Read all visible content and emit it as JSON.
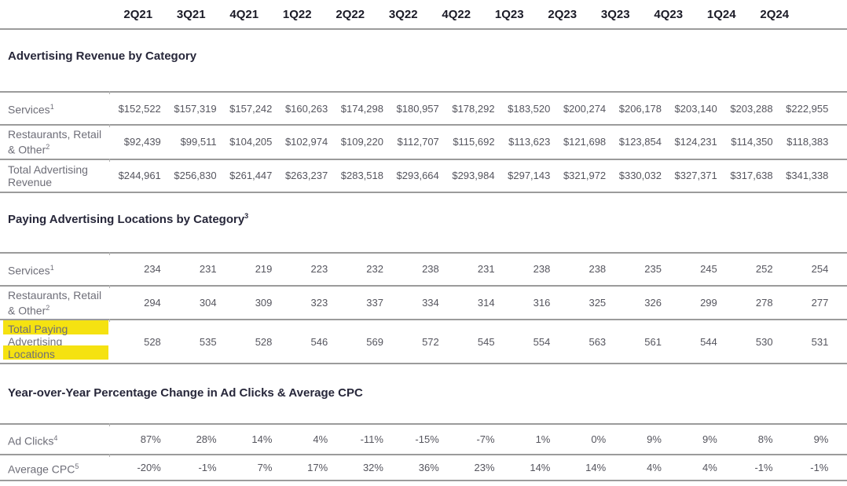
{
  "header": {
    "quarters": [
      "2Q21",
      "3Q21",
      "4Q21",
      "1Q22",
      "2Q22",
      "3Q22",
      "4Q22",
      "1Q23",
      "2Q23",
      "3Q23",
      "4Q23",
      "1Q24",
      "2Q24"
    ]
  },
  "sections": [
    {
      "title": "Advertising Revenue by Category",
      "title_sup": "",
      "rows": [
        {
          "label": "Services",
          "label_sup": "1",
          "values": [
            "$152,522",
            "$157,319",
            "$157,242",
            "$160,263",
            "$174,298",
            "$180,957",
            "$178,292",
            "$183,520",
            "$200,274",
            "$206,178",
            "$203,140",
            "$203,288",
            "$222,955"
          ]
        },
        {
          "label": "Restaurants, Retail & Other",
          "label_sup": "2",
          "values": [
            "$92,439",
            "$99,511",
            "$104,205",
            "$102,974",
            "$109,220",
            "$112,707",
            "$115,692",
            "$113,623",
            "$121,698",
            "$123,854",
            "$124,231",
            "$114,350",
            "$118,383"
          ]
        },
        {
          "label": "Total Advertising Revenue",
          "label_sup": "",
          "values": [
            "$244,961",
            "$256,830",
            "$261,447",
            "$263,237",
            "$283,518",
            "$293,664",
            "$293,984",
            "$297,143",
            "$321,972",
            "$330,032",
            "$327,371",
            "$317,638",
            "$341,338"
          ]
        }
      ]
    },
    {
      "title": "Paying Advertising Locations by Category",
      "title_sup": "3",
      "rows": [
        {
          "label": "Services",
          "label_sup": "1",
          "values": [
            "234",
            "231",
            "219",
            "223",
            "232",
            "238",
            "231",
            "238",
            "238",
            "235",
            "245",
            "252",
            "254"
          ]
        },
        {
          "label": "Restaurants, Retail & Other",
          "label_sup": "2",
          "values": [
            "294",
            "304",
            "309",
            "323",
            "337",
            "334",
            "314",
            "316",
            "325",
            "326",
            "299",
            "278",
            "277"
          ]
        },
        {
          "label_lines": [
            {
              "text": "Total Paying",
              "highlight": true
            },
            {
              "text": "Advertising",
              "highlight": false
            },
            {
              "text": "Locations",
              "highlight": true
            }
          ],
          "values": [
            "528",
            "535",
            "528",
            "546",
            "569",
            "572",
            "545",
            "554",
            "563",
            "561",
            "544",
            "530",
            "531"
          ]
        }
      ]
    },
    {
      "title": "Year-over-Year Percentage Change in Ad Clicks & Average CPC",
      "title_sup": "",
      "rows": [
        {
          "label": "Ad Clicks",
          "label_sup": "4",
          "values": [
            "87%",
            "28%",
            "14%",
            "4%",
            "-11%",
            "-15%",
            "-7%",
            "1%",
            "0%",
            "9%",
            "9%",
            "8%",
            "9%"
          ]
        },
        {
          "label": "Average CPC",
          "label_sup": "5",
          "values": [
            "-20%",
            "-1%",
            "7%",
            "17%",
            "32%",
            "36%",
            "23%",
            "14%",
            "14%",
            "4%",
            "4%",
            "-1%",
            "-1%"
          ]
        }
      ]
    }
  ],
  "colors": {
    "highlight": "#F5E211",
    "rule": "#9B9B9B",
    "section_title": "#27273A",
    "quarter_header": "#1B1B27",
    "row_label": "#6E6E78",
    "cell_value": "#55555E"
  }
}
